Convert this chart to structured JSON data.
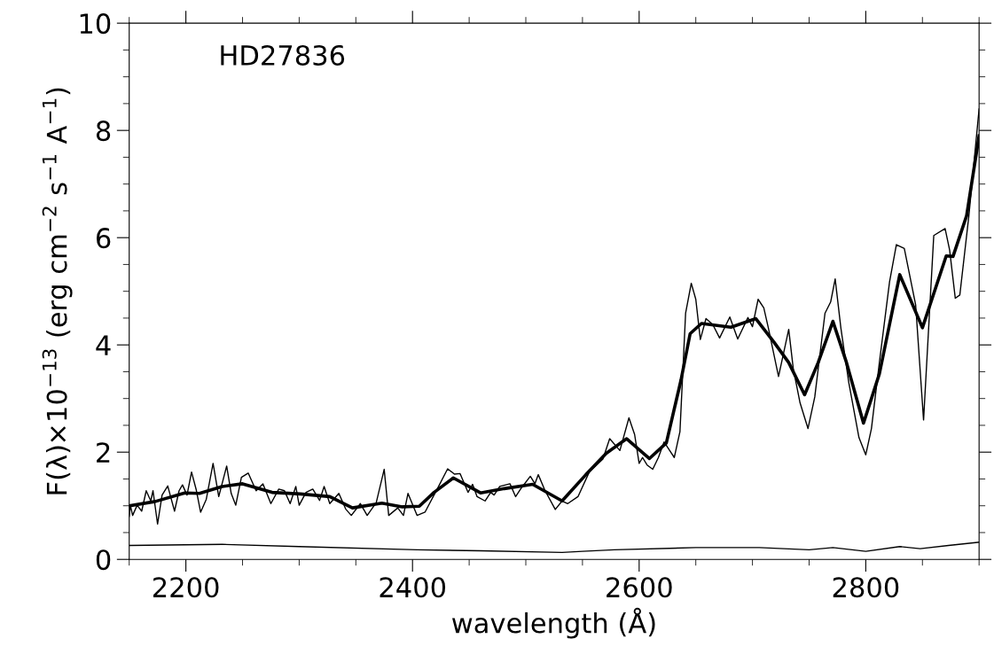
{
  "chart_data": {
    "type": "line",
    "xlabel": "wavelength (Å)",
    "ylabel": "F(λ)×10$^{−13}$ (erg cm$^{−2}$ s$^{−1}$ A$^{−1}$)",
    "annotations": [
      "HD27836"
    ],
    "xlim": [
      2150,
      2900
    ],
    "ylim": [
      0,
      10
    ],
    "xticks": [
      {
        "value": 2150,
        "label": null
      },
      2200,
      {
        "value": 2250,
        "label": null
      },
      {
        "value": 2300,
        "label": null
      },
      {
        "value": 2350,
        "label": null
      },
      2400,
      {
        "value": 2450,
        "label": null
      },
      {
        "value": 2500,
        "label": null
      },
      {
        "value": 2550,
        "label": null
      },
      2600,
      {
        "value": 2650,
        "label": null
      },
      {
        "value": 2700,
        "label": null
      },
      {
        "value": 2750,
        "label": null
      },
      2800,
      {
        "value": 2850,
        "label": null
      },
      {
        "value": 2900,
        "label": null
      }
    ],
    "yticks": [
      0,
      {
        "value": 0.5,
        "label": null
      },
      {
        "value": 1,
        "label": null
      },
      {
        "value": 1.5,
        "label": null
      },
      2,
      {
        "value": 2.5,
        "label": null
      },
      {
        "value": 3,
        "label": null
      },
      {
        "value": 3.5,
        "label": null
      },
      4,
      {
        "value": 4.5,
        "label": null
      },
      {
        "value": 5,
        "label": null
      },
      {
        "value": 5.5,
        "label": null
      },
      6,
      {
        "value": 6.5,
        "label": null
      },
      {
        "value": 7,
        "label": null
      },
      {
        "value": 7.5,
        "label": null
      },
      8,
      {
        "value": 8.5,
        "label": null
      },
      {
        "value": 9,
        "label": null
      },
      {
        "value": 9.5,
        "label": null
      },
      10
    ],
    "grid": false,
    "legend": false,
    "series": [
      {
        "color": "#000000",
        "line_style": "solid",
        "x": [
          2150,
          2151,
          2153,
          2157,
          2161,
          2165,
          2169,
          2171,
          2175,
          2179,
          2184,
          2190,
          2194,
          2197,
          2201,
          2205,
          2209,
          2213,
          2218,
          2224,
          2229,
          2236,
          2240,
          2244,
          2249,
          2255,
          2262,
          2268,
          2275,
          2282,
          2287,
          2292,
          2297,
          2300,
          2306,
          2312,
          2318,
          2322,
          2327,
          2335,
          2341,
          2346,
          2354,
          2360,
          2368,
          2375,
          2379,
          2387,
          2392,
          2396,
          2404,
          2411,
          2423,
          2431,
          2437,
          2442,
          2449,
          2453,
          2457,
          2464,
          2469,
          2472,
          2477,
          2486,
          2491,
          2496,
          2504,
          2508,
          2511,
          2517,
          2526,
          2532,
          2537,
          2546,
          2556,
          2568,
          2574,
          2583,
          2591,
          2596,
          2600,
          2603,
          2607,
          2612,
          2617,
          2622,
          2631,
          2636,
          2641,
          2646,
          2650,
          2654,
          2659,
          2665,
          2671,
          2680,
          2687,
          2696,
          2700,
          2705,
          2710,
          2714,
          2723,
          2732,
          2736,
          2742,
          2749,
          2755,
          2764,
          2769,
          2773,
          2778,
          2785,
          2794,
          2800,
          2805,
          2812,
          2821,
          2827,
          2834,
          2844,
          2851,
          2860,
          2870,
          2874,
          2879,
          2883,
          2891,
          2900
        ],
        "values": [
          0.8,
          1.01,
          0.82,
          1.01,
          0.9,
          1.28,
          1.09,
          1.28,
          0.66,
          1.2,
          1.37,
          0.9,
          1.28,
          1.39,
          1.2,
          1.63,
          1.31,
          0.88,
          1.12,
          1.79,
          1.17,
          1.74,
          1.23,
          1.01,
          1.53,
          1.61,
          1.28,
          1.41,
          1.04,
          1.31,
          1.28,
          1.04,
          1.36,
          1.01,
          1.25,
          1.31,
          1.1,
          1.36,
          1.04,
          1.23,
          0.94,
          0.82,
          1.04,
          0.82,
          1.06,
          1.68,
          0.82,
          0.96,
          0.82,
          1.23,
          0.82,
          0.88,
          1.36,
          1.69,
          1.59,
          1.6,
          1.25,
          1.4,
          1.17,
          1.09,
          1.25,
          1.2,
          1.36,
          1.41,
          1.17,
          1.33,
          1.55,
          1.41,
          1.58,
          1.28,
          0.93,
          1.09,
          1.04,
          1.17,
          1.63,
          1.87,
          2.25,
          2.03,
          2.64,
          2.33,
          1.79,
          1.9,
          1.76,
          1.68,
          1.9,
          2.19,
          1.9,
          2.38,
          4.59,
          5.15,
          4.85,
          4.1,
          4.49,
          4.38,
          4.13,
          4.52,
          4.11,
          4.51,
          4.34,
          4.85,
          4.69,
          4.32,
          3.41,
          4.29,
          3.56,
          2.92,
          2.44,
          3.03,
          4.59,
          4.8,
          5.23,
          4.32,
          3.3,
          2.27,
          1.95,
          2.44,
          3.67,
          5.18,
          5.87,
          5.8,
          4.75,
          2.6,
          6.04,
          6.17,
          5.77,
          4.87,
          4.93,
          6.41,
          8.4
        ]
      },
      {
        "color": "#000000",
        "line_style": "solid",
        "x": [
          2150,
          2173,
          2199,
          2212,
          2232,
          2250,
          2276,
          2301,
          2327,
          2347,
          2373,
          2391,
          2406,
          2419,
          2436,
          2460,
          2481,
          2506,
          2532,
          2553,
          2571,
          2589,
          2609,
          2624,
          2637,
          2645,
          2655,
          2681,
          2703,
          2719,
          2732,
          2746,
          2758,
          2771,
          2783,
          2798,
          2812,
          2830,
          2850,
          2871,
          2877,
          2889,
          2900
        ],
        "values": [
          1.0,
          1.08,
          1.24,
          1.23,
          1.36,
          1.41,
          1.25,
          1.22,
          1.17,
          0.96,
          1.05,
          0.98,
          0.99,
          1.25,
          1.52,
          1.24,
          1.32,
          1.4,
          1.09,
          1.58,
          1.98,
          2.25,
          1.88,
          2.17,
          3.35,
          4.21,
          4.4,
          4.33,
          4.49,
          4.05,
          3.67,
          3.07,
          3.67,
          4.44,
          3.67,
          2.54,
          3.46,
          5.31,
          4.32,
          5.66,
          5.65,
          6.41,
          7.9
        ]
      },
      {
        "color": "#000000",
        "line_style": "solid",
        "x": [
          2150,
          2232,
          2300,
          2404,
          2460,
          2532,
          2550,
          2578,
          2650,
          2706,
          2750,
          2771,
          2800,
          2830,
          2848,
          2873,
          2900
        ],
        "values": [
          0.26,
          0.28,
          0.24,
          0.18,
          0.16,
          0.13,
          0.15,
          0.18,
          0.22,
          0.22,
          0.18,
          0.22,
          0.15,
          0.24,
          0.2,
          0.26,
          0.32
        ]
      }
    ]
  }
}
